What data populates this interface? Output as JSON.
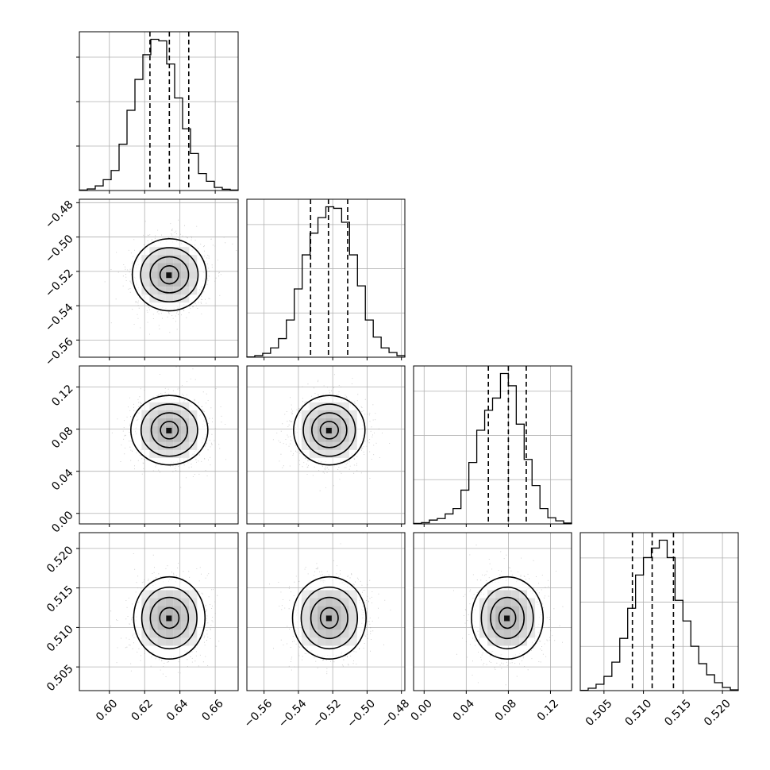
{
  "chart_data": {
    "type": "corner",
    "title": "",
    "parameters": [
      {
        "name": "",
        "range": [
          0.583,
          0.673
        ],
        "ticks": [
          0.6,
          0.62,
          0.64,
          0.66
        ],
        "tick_labels": [
          "0.60",
          "0.62",
          "0.64",
          "0.66"
        ],
        "quantiles": [
          0.623,
          0.634,
          0.645
        ],
        "histogram": [
          0.3,
          1,
          3,
          7,
          13,
          30,
          52,
          72,
          88,
          98,
          97,
          82,
          60,
          40,
          24,
          11,
          6,
          2,
          0.8,
          0.3
        ]
      },
      {
        "name": "",
        "range": [
          -0.57,
          -0.478
        ],
        "ticks": [
          -0.56,
          -0.54,
          -0.52,
          -0.5,
          -0.48
        ],
        "tick_labels": [
          "−0.56",
          "−0.54",
          "−0.52",
          "−0.50",
          "−0.48"
        ],
        "quantiles": [
          -0.5329,
          -0.5225,
          -0.5113
        ],
        "histogram": [
          0.2,
          1,
          2.5,
          6,
          12,
          24,
          44,
          66,
          80,
          90,
          97,
          96,
          87,
          66,
          46,
          24,
          13,
          6,
          3,
          1
        ]
      },
      {
        "name": "",
        "range": [
          -0.01,
          0.14
        ],
        "ticks": [
          0,
          0.04,
          0.08,
          0.12
        ],
        "tick_labels": [
          "0.00",
          "0.04",
          "0.08",
          "0.12"
        ],
        "quantiles": [
          0.061,
          0.08,
          0.097
        ],
        "histogram": [
          0.3,
          0.8,
          2.5,
          3.5,
          6.5,
          10,
          22,
          40,
          61,
          74,
          82,
          98,
          90,
          65,
          42,
          25,
          10,
          4,
          2,
          0.6
        ]
      },
      {
        "name": "",
        "range": [
          0.502,
          0.522
        ],
        "ticks": [
          0.505,
          0.51,
          0.515,
          0.52
        ],
        "tick_labels": [
          "0.505",
          "0.510",
          "0.515",
          "0.520"
        ],
        "quantiles": [
          0.5086,
          0.5111,
          0.5138
        ],
        "histogram": [
          0.2,
          1.5,
          4,
          9,
          18,
          33,
          52,
          73,
          84,
          90,
          95,
          84,
          57,
          44,
          28,
          17,
          10,
          5,
          2,
          0.5
        ]
      }
    ],
    "pairs": [
      {
        "x_param": 0,
        "y_param": 1,
        "center": [
          0.634,
          -0.522
        ],
        "sigma": [
          0.0105,
          0.0105
        ]
      },
      {
        "x_param": 0,
        "y_param": 2,
        "center": [
          0.634,
          0.079
        ],
        "sigma": [
          0.0105,
          0.0165
        ]
      },
      {
        "x_param": 1,
        "y_param": 2,
        "center": [
          -0.522,
          0.079
        ],
        "sigma": [
          0.0105,
          0.0165
        ]
      },
      {
        "x_param": 0,
        "y_param": 3,
        "center": [
          0.634,
          0.5112
        ],
        "sigma": [
          0.0105,
          0.0026
        ]
      },
      {
        "x_param": 1,
        "y_param": 3,
        "center": [
          -0.522,
          0.5112
        ],
        "sigma": [
          0.0105,
          0.0026
        ]
      },
      {
        "x_param": 2,
        "y_param": 3,
        "center": [
          0.079,
          0.5112
        ],
        "sigma": [
          0.0165,
          0.0026
        ]
      }
    ],
    "contour_levels_sigma": [
      0.5,
      1.0,
      1.5,
      2.0
    ],
    "grid": true,
    "colors": {
      "line": "#000000",
      "grid": "#b0b0b0",
      "scatter": "#9a9a9a"
    }
  }
}
